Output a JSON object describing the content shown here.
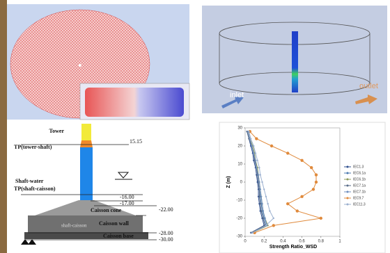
{
  "flow_panel": {
    "inlet": "inlet",
    "outlet": "outlet"
  },
  "structure_panel": {
    "tower": "Tower",
    "tp_tower_shaft": "TP(tower-shaft)",
    "level_top": "15.15",
    "shaft_water": "Shaft-water",
    "tp_shaft_caisson": "TP(shaft-caisson)",
    "level_tp_1": "-16.00",
    "level_tp_2": "-17.00",
    "caisson_cone": "Caisson cone",
    "level_cone": "-22.00",
    "shaft_caisson": "shaft-caisson",
    "caisson_wall": "Caisson wall",
    "level_wall": "-28.00",
    "caisson_base": "Caisson base",
    "level_base": "-30.00"
  },
  "chart_data": {
    "type": "line",
    "xlabel": "Strength Ratio_WSD",
    "ylabel": "Z (m)",
    "z": [
      28,
      24,
      20,
      16,
      12,
      8,
      4,
      0,
      -4,
      -8,
      -12,
      -16,
      -20,
      -24,
      -28
    ],
    "xlim": [
      0,
      1
    ],
    "xticks": [
      0,
      0.2,
      0.4,
      0.6,
      0.8,
      1
    ],
    "ylim": [
      -30,
      30
    ],
    "yticks": [
      -30,
      -20,
      -10,
      0,
      10,
      20,
      30
    ],
    "series": [
      {
        "name": "IEC1.3",
        "color": "#2f4f8f",
        "values": [
          0.02,
          0.04,
          0.06,
          0.08,
          0.09,
          0.11,
          0.12,
          0.13,
          0.14,
          0.14,
          0.15,
          0.16,
          0.18,
          0.2,
          0.06
        ]
      },
      {
        "name": "IEC6.1a",
        "color": "#4a78b0",
        "values": [
          0.03,
          0.05,
          0.07,
          0.09,
          0.1,
          0.12,
          0.13,
          0.14,
          0.15,
          0.16,
          0.17,
          0.18,
          0.2,
          0.22,
          0.07
        ]
      },
      {
        "name": "IEC6.1b",
        "color": "#8c9a5a",
        "values": [
          0.03,
          0.05,
          0.08,
          0.1,
          0.11,
          0.13,
          0.14,
          0.15,
          0.16,
          0.17,
          0.18,
          0.19,
          0.21,
          0.24,
          0.08
        ]
      },
      {
        "name": "IEC7.1a",
        "color": "#5a6e8a",
        "values": [
          0.02,
          0.04,
          0.07,
          0.09,
          0.1,
          0.12,
          0.13,
          0.14,
          0.15,
          0.15,
          0.16,
          0.17,
          0.19,
          0.21,
          0.06
        ]
      },
      {
        "name": "IEC7.1b",
        "color": "#6f8fbf",
        "values": [
          0.03,
          0.05,
          0.07,
          0.09,
          0.11,
          0.12,
          0.14,
          0.15,
          0.16,
          0.17,
          0.18,
          0.19,
          0.21,
          0.23,
          0.07
        ]
      },
      {
        "name": "IEC9.7",
        "color": "#e08a3c",
        "values": [
          0.05,
          0.12,
          0.28,
          0.45,
          0.6,
          0.7,
          0.75,
          0.75,
          0.72,
          0.6,
          0.45,
          0.55,
          0.8,
          0.3,
          0.1
        ]
      },
      {
        "name": "IEC11.3",
        "color": "#9bb0cf",
        "values": [
          0.04,
          0.06,
          0.09,
          0.11,
          0.13,
          0.15,
          0.16,
          0.18,
          0.2,
          0.22,
          0.24,
          0.26,
          0.3,
          0.22,
          0.08
        ]
      }
    ]
  }
}
